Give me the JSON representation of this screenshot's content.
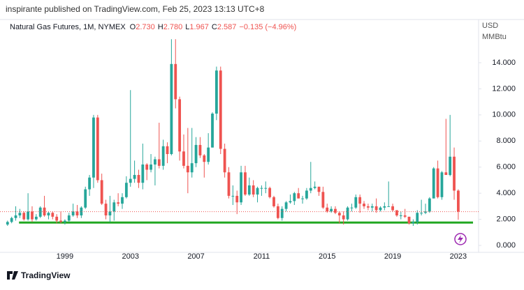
{
  "header": {
    "published": "inspirante published on TradingView.com, Feb 25, 2023 13:13 UTC+8"
  },
  "footer": {
    "brand": "TradingView"
  },
  "chart_data": {
    "type": "candlestick",
    "title": "Natural Gas Futures, 1M, NYMEX",
    "ohlc": [
      [
        "O",
        "2.730"
      ],
      [
        "H",
        "2.780"
      ],
      [
        "L",
        "1.967"
      ],
      [
        "C",
        "2.587"
      ]
    ],
    "change": "−0.135 (−4.96%)",
    "y_unit": [
      "USD",
      "MMBtu"
    ],
    "up_color": "#26a69a",
    "down_color": "#ef5350",
    "xlim": [
      1995.04,
      2024.24
    ],
    "xticks": [
      1999,
      2003,
      2007,
      2011,
      2015,
      2019,
      2023
    ],
    "ylim": [
      -0.53,
      16.4
    ],
    "yticks": [
      {
        "value": 0,
        "label": "0.000"
      },
      {
        "value": 2,
        "label": "2.000"
      },
      {
        "value": 4,
        "label": "4.000"
      },
      {
        "value": 6,
        "label": "6.000"
      },
      {
        "value": 8,
        "label": "8.000"
      },
      {
        "value": 10,
        "label": "10.000"
      },
      {
        "value": 12,
        "label": "12.000"
      },
      {
        "value": 14,
        "label": "14.000"
      }
    ],
    "support_line": {
      "value": 1.75,
      "x": [
        1996.2,
        2023.9
      ],
      "color": "#22a722"
    },
    "x": [
      1995.5,
      1995.75,
      1996,
      1996.25,
      1996.5,
      1996.75,
      1997,
      1997.25,
      1997.5,
      1997.75,
      1998,
      1998.25,
      1998.5,
      1998.75,
      1999,
      1999.25,
      1999.5,
      1999.75,
      2000,
      2000.25,
      2000.5,
      2000.75,
      2001,
      2001.25,
      2001.5,
      2001.75,
      2002,
      2002.25,
      2002.5,
      2002.75,
      2003,
      2003.25,
      2003.5,
      2003.75,
      2004,
      2004.25,
      2004.5,
      2004.75,
      2005,
      2005.25,
      2005.5,
      2005.75,
      2006,
      2006.25,
      2006.5,
      2006.75,
      2007,
      2007.25,
      2007.5,
      2007.75,
      2008,
      2008.25,
      2008.5,
      2008.75,
      2009,
      2009.25,
      2009.5,
      2009.75,
      2010,
      2010.25,
      2010.5,
      2010.75,
      2011,
      2011.25,
      2011.5,
      2011.75,
      2012,
      2012.25,
      2012.5,
      2012.75,
      2013,
      2013.25,
      2013.5,
      2013.75,
      2014,
      2014.25,
      2014.5,
      2014.75,
      2015,
      2015.25,
      2015.5,
      2015.75,
      2016,
      2016.25,
      2016.5,
      2016.75,
      2017,
      2017.25,
      2017.5,
      2017.75,
      2018,
      2018.25,
      2018.5,
      2018.75,
      2019,
      2019.25,
      2019.5,
      2019.75,
      2020,
      2020.25,
      2020.5,
      2020.75,
      2021,
      2021.25,
      2021.5,
      2021.75,
      2022,
      2022.25,
      2022.5,
      2022.75,
      2023
    ],
    "open": [
      1.6,
      1.8,
      2.1,
      2.3,
      2.5,
      2.0,
      2.6,
      2.0,
      2.2,
      2.9,
      2.3,
      2.5,
      2.2,
      1.9,
      1.8,
      1.9,
      2.3,
      2.6,
      2.3,
      2.9,
      4.3,
      5.2,
      9.8,
      5.0,
      3.2,
      2.3,
      2.6,
      3.3,
      3.2,
      3.7,
      4.8,
      5.1,
      5.4,
      4.8,
      6.2,
      5.8,
      6.2,
      6.6,
      6.1,
      7.6,
      7.0,
      13.9,
      11.2,
      7.2,
      6.1,
      5.6,
      6.3,
      7.7,
      6.9,
      6.4,
      7.5,
      10.1,
      13.4,
      7.4,
      5.6,
      3.8,
      3.8,
      3.3,
      5.6,
      3.9,
      4.6,
      3.9,
      4.4,
      4.4,
      4.4,
      3.7,
      3.0,
      2.1,
      2.8,
      3.3,
      3.4,
      4.0,
      3.6,
      3.6,
      4.2,
      4.4,
      4.5,
      4.1,
      2.9,
      2.6,
      2.8,
      2.5,
      2.3,
      2.0,
      2.9,
      2.9,
      3.7,
      3.2,
      3.0,
      2.9,
      3.0,
      2.7,
      2.9,
      3.0,
      3.0,
      2.7,
      2.3,
      2.3,
      2.2,
      1.7,
      1.8,
      2.5,
      2.5,
      2.6,
      3.6,
      5.9,
      3.7,
      5.6,
      5.4,
      6.8,
      4.2
    ],
    "high": [
      1.9,
      2.2,
      3.0,
      2.8,
      2.6,
      4.0,
      3.0,
      2.4,
      3.0,
      3.8,
      2.6,
      2.6,
      2.4,
      2.6,
      2.0,
      2.5,
      3.2,
      3.1,
      3.0,
      4.5,
      5.4,
      10.0,
      10.0,
      5.5,
      3.5,
      3.8,
      3.5,
      4.0,
      4.0,
      5.3,
      11.9,
      6.5,
      5.8,
      7.8,
      6.3,
      7.0,
      6.8,
      9.4,
      8.1,
      7.9,
      15.8,
      15.8,
      11.4,
      8.5,
      9.0,
      9.0,
      8.3,
      8.3,
      7.0,
      8.6,
      10.2,
      13.7,
      13.7,
      7.8,
      6.0,
      4.6,
      4.2,
      6.1,
      6.1,
      5.2,
      5.0,
      4.5,
      4.6,
      4.9,
      4.5,
      3.8,
      3.2,
      3.0,
      3.4,
      3.9,
      4.1,
      4.4,
      3.8,
      4.4,
      6.4,
      4.9,
      4.5,
      4.5,
      3.2,
      3.0,
      3.0,
      2.6,
      2.6,
      3.0,
      3.2,
      3.9,
      3.9,
      3.4,
      3.2,
      3.2,
      3.6,
      3.0,
      3.3,
      4.9,
      3.2,
      2.7,
      2.6,
      2.8,
      2.2,
      2.0,
      2.7,
      3.5,
      3.2,
      3.7,
      6.0,
      6.5,
      5.7,
      9.7,
      10.0,
      7.5,
      4.3
    ],
    "low": [
      1.5,
      1.7,
      1.9,
      2.1,
      1.9,
      1.9,
      1.8,
      1.9,
      2.1,
      2.2,
      2.0,
      2.0,
      1.7,
      1.7,
      1.6,
      1.8,
      2.2,
      2.1,
      2.1,
      2.8,
      3.8,
      4.4,
      4.8,
      3.1,
      2.0,
      1.8,
      1.9,
      3.0,
      2.8,
      3.6,
      4.5,
      4.8,
      4.4,
      4.3,
      5.0,
      5.6,
      4.6,
      5.9,
      5.8,
      6.3,
      6.9,
      10.5,
      6.5,
      5.9,
      4.0,
      5.2,
      6.0,
      6.7,
      5.2,
      6.2,
      7.5,
      9.6,
      7.0,
      5.2,
      3.6,
      3.1,
      2.4,
      3.1,
      3.8,
      3.8,
      3.7,
      3.3,
      3.8,
      4.0,
      3.6,
      2.9,
      2.0,
      1.9,
      2.6,
      3.2,
      3.1,
      3.6,
      3.2,
      3.5,
      4.0,
      4.3,
      3.8,
      2.8,
      2.5,
      2.5,
      2.4,
      1.7,
      1.6,
      1.9,
      2.6,
      2.8,
      2.5,
      2.8,
      2.7,
      2.6,
      2.5,
      2.6,
      2.7,
      3.0,
      2.6,
      2.2,
      2.0,
      2.1,
      1.6,
      1.5,
      1.6,
      2.3,
      2.4,
      2.5,
      3.6,
      3.6,
      3.5,
      5.4,
      5.3,
      3.5,
      1.967
    ],
    "close": [
      1.8,
      2.1,
      2.3,
      2.5,
      2.0,
      2.6,
      2.0,
      2.2,
      2.9,
      2.3,
      2.5,
      2.2,
      1.9,
      1.8,
      1.9,
      2.3,
      2.6,
      2.3,
      2.9,
      4.3,
      5.2,
      9.8,
      5.0,
      3.2,
      2.3,
      2.6,
      3.3,
      3.2,
      3.7,
      4.8,
      5.1,
      5.4,
      4.8,
      6.2,
      5.8,
      6.2,
      6.6,
      6.1,
      7.6,
      7.0,
      13.9,
      11.2,
      7.2,
      6.1,
      5.6,
      6.3,
      7.7,
      6.9,
      6.4,
      7.5,
      10.1,
      13.4,
      7.4,
      5.6,
      3.8,
      3.8,
      3.3,
      5.6,
      3.9,
      4.6,
      3.9,
      4.4,
      4.4,
      4.4,
      3.7,
      3.0,
      2.1,
      2.8,
      3.3,
      3.4,
      4.0,
      3.6,
      3.6,
      4.2,
      4.4,
      4.5,
      4.1,
      2.9,
      2.6,
      2.8,
      2.5,
      2.3,
      2.0,
      2.9,
      2.9,
      3.7,
      3.2,
      3.0,
      2.9,
      3.0,
      2.7,
      2.9,
      3.0,
      3.0,
      2.7,
      2.3,
      2.3,
      2.2,
      1.7,
      1.8,
      2.5,
      2.5,
      2.6,
      3.6,
      5.9,
      3.7,
      5.6,
      5.4,
      6.8,
      4.2,
      2.587
    ]
  }
}
